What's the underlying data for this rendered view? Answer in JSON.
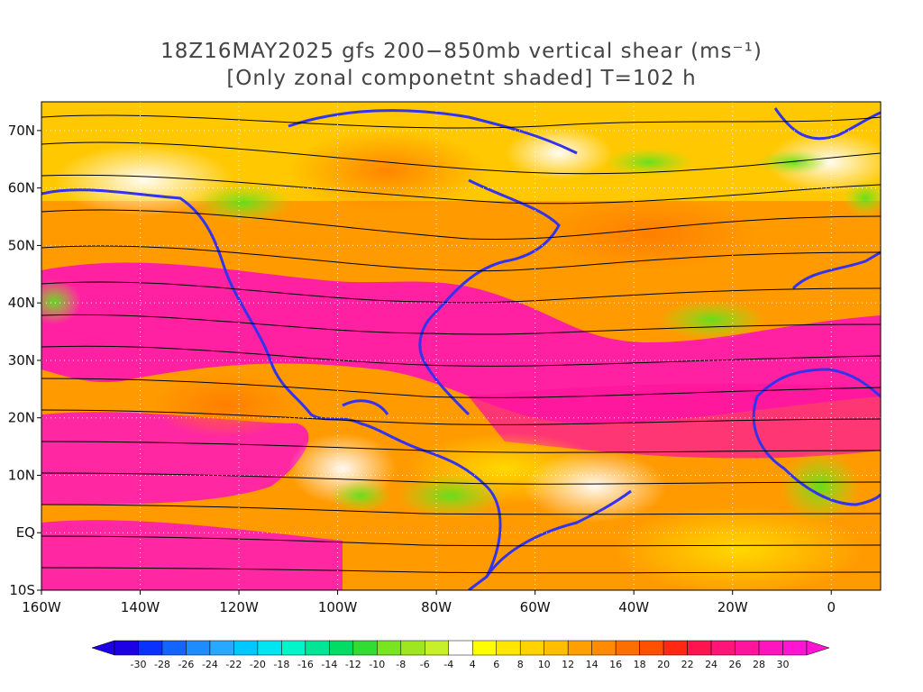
{
  "header": {
    "title_line1": "18Z16MAY2025 gfs 200−850mb vertical shear (ms⁻¹)",
    "title_line2": "[Only zonal componetnt shaded] T=102 h"
  },
  "map": {
    "lat_labels": [
      "70N",
      "60N",
      "50N",
      "40N",
      "30N",
      "20N",
      "10N",
      "EQ",
      "10S"
    ],
    "lat_values": [
      70,
      60,
      50,
      40,
      30,
      20,
      10,
      0,
      -10
    ],
    "lon_labels": [
      "160W",
      "140W",
      "120W",
      "100W",
      "80W",
      "60W",
      "40W",
      "20W",
      "0"
    ],
    "lon_values": [
      -160,
      -140,
      -120,
      -100,
      -80,
      -60,
      -40,
      -20,
      0
    ],
    "lon_range": [
      -160,
      10
    ],
    "lat_range": [
      -10,
      75
    ],
    "field": "200-850mb vertical shear, zonal component shaded; streamlines of shear vector",
    "coastline_color": "#3333ee",
    "streamline_color": "#000000",
    "contour_color": "#9900aa"
  },
  "colorbar": {
    "labels": [
      "-30",
      "-28",
      "-26",
      "-24",
      "-22",
      "-20",
      "-18",
      "-16",
      "-14",
      "-12",
      "-10",
      "-8",
      "-6",
      "-4",
      "4",
      "6",
      "8",
      "10",
      "12",
      "14",
      "16",
      "18",
      "20",
      "22",
      "24",
      "26",
      "28",
      "30"
    ],
    "colors": [
      "#1e00e6",
      "#0a32ff",
      "#1464ff",
      "#1e8cff",
      "#28a8ff",
      "#00c8ff",
      "#00e6f0",
      "#00f5c8",
      "#00e696",
      "#00dc64",
      "#32dc32",
      "#78e61e",
      "#a0e61e",
      "#c8f028",
      "#ffffff",
      "#ffff00",
      "#ffe600",
      "#ffd200",
      "#ffbe00",
      "#ffa000",
      "#ff8c00",
      "#ff6e00",
      "#ff5000",
      "#ff2814",
      "#ff1450",
      "#ff1478",
      "#ff149b",
      "#ff14be",
      "#ff14d2"
    ],
    "under_color": "#1e00e6",
    "over_color": "#ff14d2"
  }
}
